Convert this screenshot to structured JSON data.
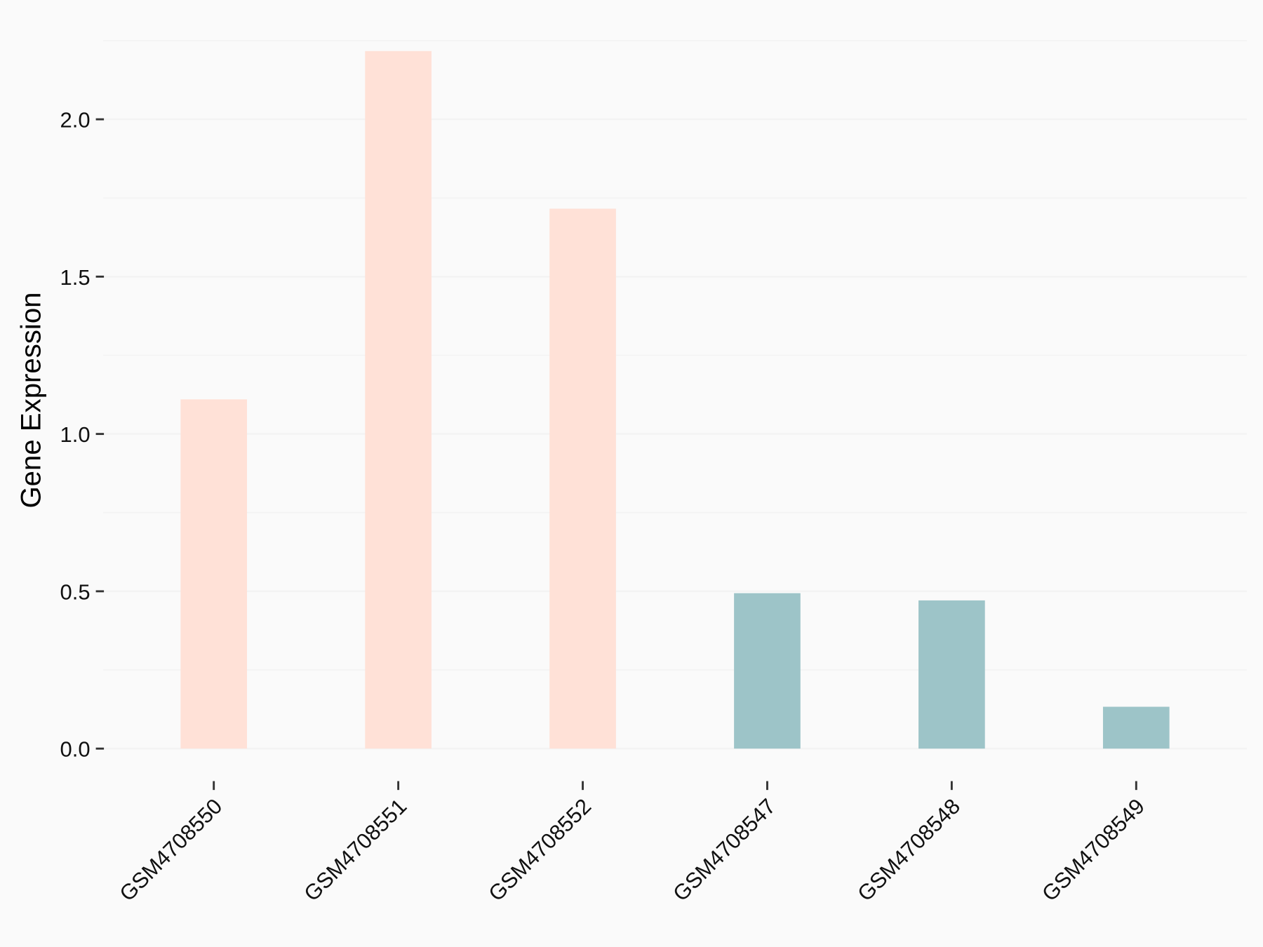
{
  "chart_data": {
    "type": "bar",
    "y_label": "Gene Expression",
    "categories": [
      "GSM4708550",
      "GSM4708551",
      "GSM4708552",
      "GSM4708547",
      "GSM4708548",
      "GSM4708549"
    ],
    "values": [
      1.11,
      2.217,
      1.716,
      0.494,
      0.471,
      0.133
    ],
    "colors": [
      "#ffe1d7",
      "#ffe1d7",
      "#ffe1d7",
      "#9dc4c8",
      "#9dc4c8",
      "#9dc4c8"
    ],
    "ylim": [
      -0.111,
      2.328
    ],
    "yticks": [
      {
        "value": 0,
        "label": "0.0"
      },
      {
        "value": 0.5,
        "label": "0.5"
      },
      {
        "value": 1,
        "label": "1.0"
      },
      {
        "value": 1.5,
        "label": "1.5"
      },
      {
        "value": 2,
        "label": "2.0"
      }
    ],
    "minor_yticks": [
      0.25,
      0.75,
      1.25,
      1.75,
      2.25
    ],
    "grid": true
  }
}
